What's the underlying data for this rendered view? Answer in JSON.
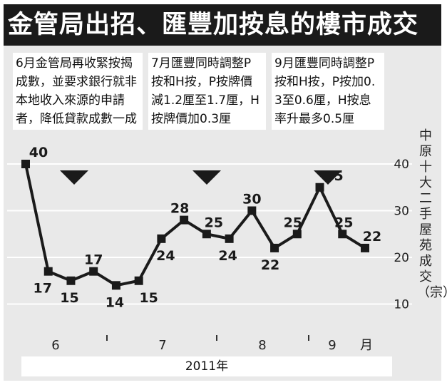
{
  "title": "金管局出招、匯豐加按息的樓市成交",
  "notes": [
    "6月金管局再收緊按揭成數，並要求銀行就非本地收入來源的申請者，降低貸款成數一成",
    "7月匯豐同時調整P按和H按，P按牌價減1.2厘至1.7厘，H按牌價加0.3厘",
    "9月匯豐同時調整P按和H按，P按加0.3至0.6厘，H按息率升最多0.5厘"
  ],
  "ylabel": "中原十大二手屋苑成交（宗）",
  "xlabel": "2011年",
  "colors": {
    "line": "#1a1a1a",
    "panel": "#e9e9e9",
    "title_bg": "#1a1a1a",
    "grid": "#ffffff"
  },
  "chart_data": {
    "type": "line",
    "title": "金管局出招、匯豐加按息的樓市成交",
    "xlabel": "2011年",
    "ylabel": "中原十大二手屋苑成交（宗）",
    "ylim": [
      5,
      40
    ],
    "yticks": [
      10,
      20,
      30,
      40
    ],
    "grid": true,
    "month_labels": [
      "6",
      "7",
      "8",
      "9",
      "月"
    ],
    "series": [
      {
        "values": [
          40,
          17,
          15,
          17,
          14,
          15,
          24,
          28,
          25,
          24,
          30,
          22,
          25,
          35,
          25,
          22
        ]
      }
    ],
    "point_labels": [
      "40",
      "17",
      "15",
      "17",
      "14",
      "15",
      "24",
      "28",
      "25",
      "24",
      "30",
      "22",
      "25",
      "35",
      "25",
      "22"
    ]
  }
}
